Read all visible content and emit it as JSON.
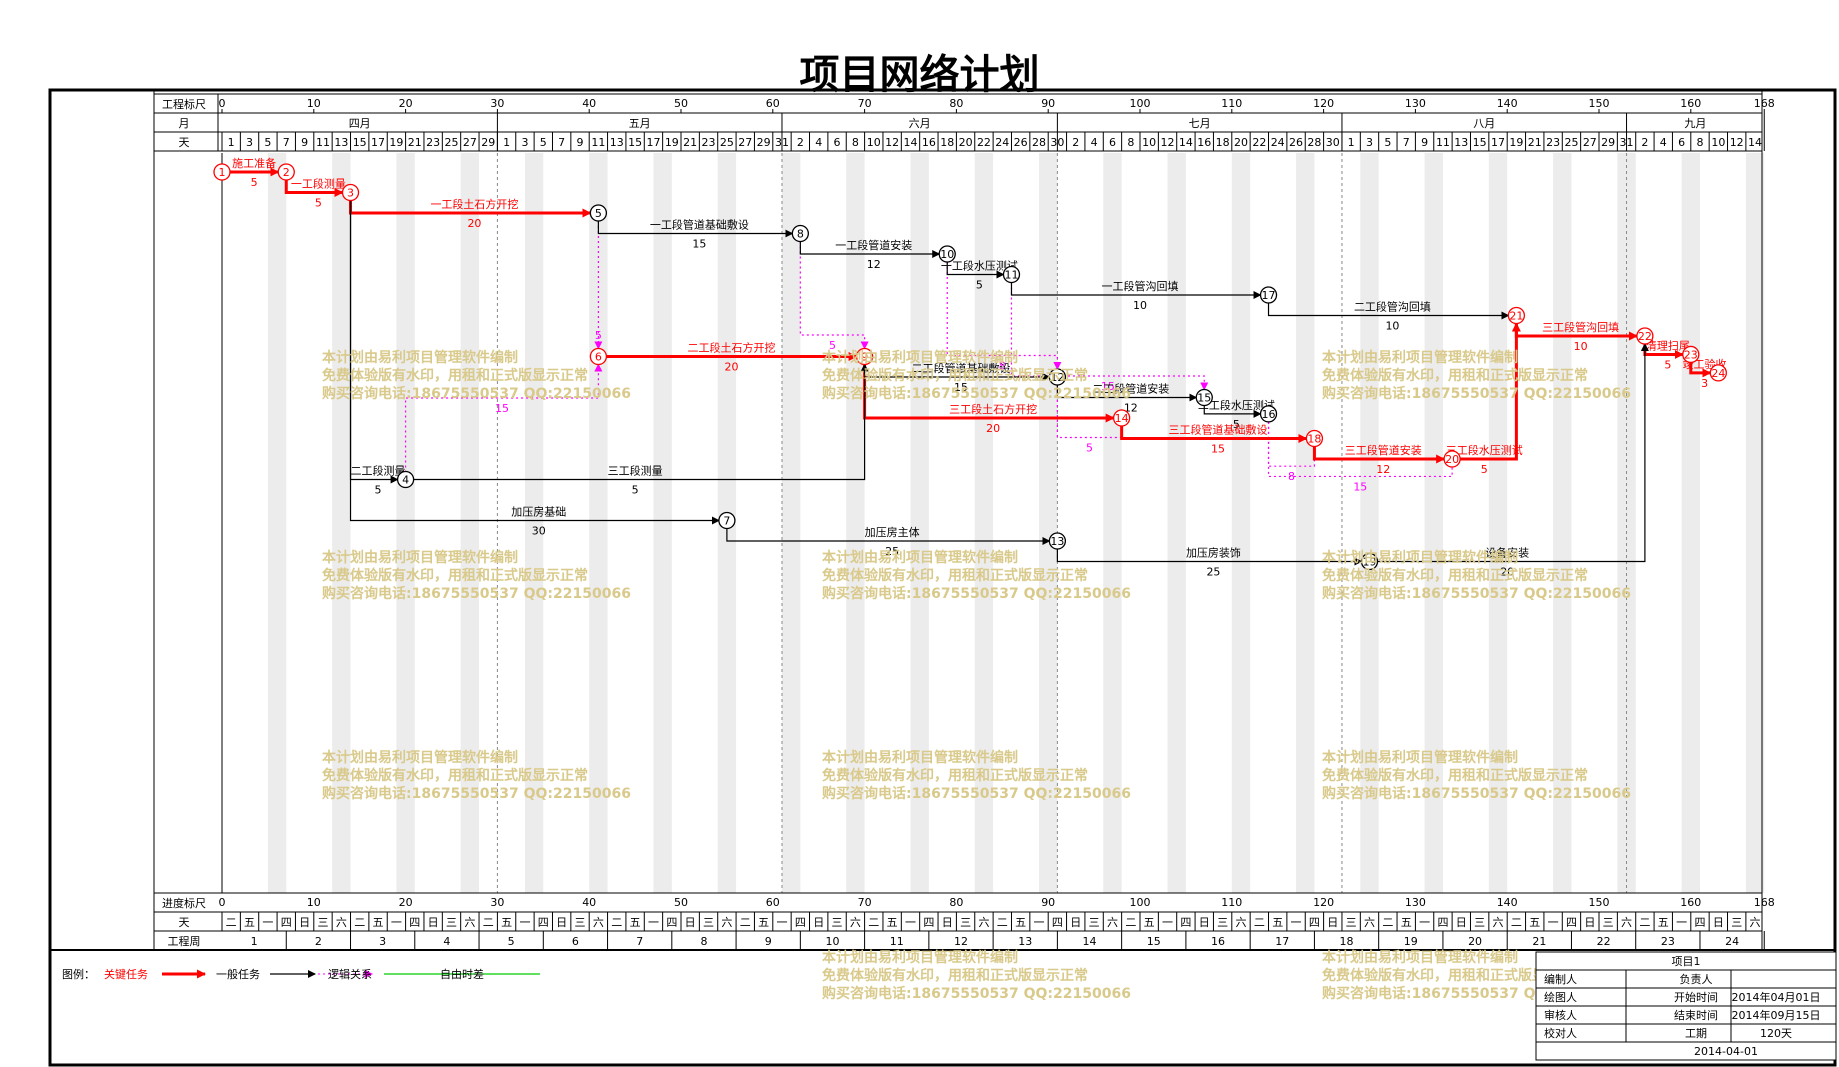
{
  "title": "项目网络计划",
  "scale": {
    "top_label": "工程标尺",
    "bottom_label": "进度标尺",
    "ticks": [
      "0",
      "10",
      "20",
      "30",
      "40",
      "50",
      "60",
      "70",
      "80",
      "90",
      "100",
      "110",
      "120",
      "130",
      "140",
      "150",
      "160",
      "168"
    ],
    "tick_days": [
      0,
      10,
      20,
      30,
      40,
      50,
      60,
      70,
      80,
      90,
      100,
      110,
      120,
      130,
      140,
      150,
      160,
      168
    ],
    "total_days": 168
  },
  "month_row": {
    "label": "月",
    "months": [
      {
        "name": "四月",
        "days": 30
      },
      {
        "name": "五月",
        "days": 31
      },
      {
        "name": "六月",
        "days": 30
      },
      {
        "name": "七月",
        "days": 31
      },
      {
        "name": "八月",
        "days": 31
      },
      {
        "name": "九月",
        "days": 15
      }
    ]
  },
  "day_row": {
    "label": "天",
    "days": [
      "1",
      "3",
      "5",
      "7",
      "9",
      "11",
      "13",
      "15",
      "17",
      "19",
      "21",
      "23",
      "25",
      "27",
      "29",
      "1",
      "3",
      "5",
      "7",
      "9",
      "11",
      "13",
      "15",
      "17",
      "19",
      "21",
      "23",
      "25",
      "27",
      "29",
      "31",
      "2",
      "4",
      "6",
      "8",
      "10",
      "12",
      "14",
      "16",
      "18",
      "20",
      "22",
      "24",
      "26",
      "28",
      "30",
      "2",
      "4",
      "6",
      "8",
      "10",
      "12",
      "14",
      "16",
      "18",
      "20",
      "22",
      "24",
      "26",
      "28",
      "30",
      "1",
      "3",
      "5",
      "7",
      "9",
      "11",
      "13",
      "15",
      "17",
      "19",
      "21",
      "23",
      "25",
      "27",
      "29",
      "31",
      "2",
      "4",
      "6",
      "8",
      "10",
      "12",
      "14"
    ]
  },
  "weekday_row": {
    "label": "天",
    "days": [
      "二",
      "五",
      "一",
      "四",
      "日",
      "三",
      "六",
      "二",
      "五",
      "一",
      "四",
      "日",
      "三",
      "六",
      "二",
      "五",
      "一",
      "四",
      "日",
      "三",
      "六",
      "二",
      "五",
      "一",
      "四",
      "日",
      "三",
      "六",
      "二",
      "五",
      "一",
      "四",
      "日",
      "三",
      "六",
      "二",
      "五",
      "一",
      "四",
      "日",
      "三",
      "六",
      "二",
      "五",
      "一",
      "四",
      "日",
      "三",
      "六",
      "二",
      "五",
      "一",
      "四",
      "日",
      "三",
      "六",
      "二",
      "五",
      "一",
      "四",
      "日",
      "三",
      "六",
      "二",
      "五",
      "一",
      "四",
      "日",
      "三",
      "六",
      "二",
      "五",
      "一",
      "四",
      "日",
      "三",
      "六",
      "二",
      "五",
      "一",
      "四",
      "日",
      "三",
      "六"
    ]
  },
  "week_row": {
    "label": "工程周",
    "weeks": [
      "1",
      "2",
      "3",
      "4",
      "5",
      "6",
      "7",
      "8",
      "9",
      "10",
      "11",
      "12",
      "13",
      "14",
      "15",
      "16",
      "17",
      "18",
      "19",
      "20",
      "21",
      "22",
      "23",
      "24"
    ]
  },
  "nodes": [
    {
      "id": "1",
      "day": 0,
      "row": 0,
      "critical": true
    },
    {
      "id": "2",
      "day": 7,
      "row": 0,
      "critical": true
    },
    {
      "id": "3",
      "day": 14,
      "row": 1,
      "critical": true
    },
    {
      "id": "4",
      "day": 20,
      "row": 15
    },
    {
      "id": "5",
      "day": 41,
      "row": 2
    },
    {
      "id": "6",
      "day": 41,
      "row": 9,
      "critical": true
    },
    {
      "id": "7",
      "day": 55,
      "row": 17
    },
    {
      "id": "8",
      "day": 63,
      "row": 3
    },
    {
      "id": "9",
      "day": 70,
      "row": 9,
      "critical": true
    },
    {
      "id": "10",
      "day": 79,
      "row": 4
    },
    {
      "id": "11",
      "day": 86,
      "row": 5
    },
    {
      "id": "12",
      "day": 91,
      "row": 10
    },
    {
      "id": "13",
      "day": 91,
      "row": 18
    },
    {
      "id": "14",
      "day": 98,
      "row": 12,
      "critical": true
    },
    {
      "id": "15",
      "day": 107,
      "row": 11
    },
    {
      "id": "16",
      "day": 114,
      "row": 11.8
    },
    {
      "id": "17",
      "day": 114,
      "row": 6
    },
    {
      "id": "18",
      "day": 119,
      "row": 13,
      "critical": true
    },
    {
      "id": "19",
      "day": 125,
      "row": 19
    },
    {
      "id": "20",
      "day": 134,
      "row": 14,
      "critical": true
    },
    {
      "id": "21",
      "day": 141,
      "row": 7,
      "critical": true
    },
    {
      "id": "22",
      "day": 155,
      "row": 8,
      "critical": true
    },
    {
      "id": "23",
      "day": 160,
      "row": 8.9,
      "critical": true
    },
    {
      "id": "24",
      "day": 163,
      "row": 9.8,
      "critical": true
    }
  ],
  "tasks": [
    {
      "from": "1",
      "to": "2",
      "name": "施工准备",
      "duration": "5",
      "critical": true
    },
    {
      "from": "2",
      "to": "3",
      "name": "一工段测量",
      "duration": "5",
      "critical": true
    },
    {
      "from": "3",
      "to": "5",
      "name": "一工段土石方开挖",
      "duration": "20",
      "critical": true
    },
    {
      "from": "5",
      "to": "8",
      "name": "一工段管道基础敷设",
      "duration": "15"
    },
    {
      "from": "8",
      "to": "10",
      "name": "一工段管道安装",
      "duration": "12"
    },
    {
      "from": "10",
      "to": "11",
      "name": "一工段水压测试",
      "duration": "5"
    },
    {
      "from": "11",
      "to": "17",
      "name": "一工段管沟回填",
      "duration": "10"
    },
    {
      "from": "17",
      "to": "21",
      "name": "二工段管沟回填",
      "duration": "10"
    },
    {
      "from": "21",
      "to": "22",
      "name": "三工段管沟回填",
      "duration": "10",
      "critical": true
    },
    {
      "from": "22",
      "to": "23",
      "name": "清理扫尾",
      "duration": "5",
      "critical": true
    },
    {
      "from": "23",
      "to": "24",
      "name": "竣工验收",
      "duration": "3",
      "critical": true
    },
    {
      "from": "6",
      "to": "9",
      "name": "二工段土石方开挖",
      "duration": "20",
      "critical": true
    },
    {
      "from": "9",
      "to": "12",
      "name": "二工段管道基础敷设",
      "duration": "15"
    },
    {
      "from": "12",
      "to": "15",
      "name": "二工段管道安装",
      "duration": "12"
    },
    {
      "from": "15",
      "to": "16",
      "name": "二工段水压测试",
      "duration": "5"
    },
    {
      "from": "9",
      "to": "14",
      "name": "三工段土石方开挖",
      "duration": "20",
      "critical": true
    },
    {
      "from": "14",
      "to": "18",
      "name": "三工段管道基础敷设",
      "duration": "15",
      "critical": true
    },
    {
      "from": "18",
      "to": "20",
      "name": "三工段管道安装",
      "duration": "12",
      "critical": true
    },
    {
      "from": "20",
      "to": "21",
      "name": "三工段水压测试",
      "duration": "5",
      "critical": true
    },
    {
      "from": "3",
      "to": "4",
      "name": "二工段测量",
      "duration": "5"
    },
    {
      "from": "4",
      "to": "9",
      "name": "三工段测量",
      "duration": "5"
    },
    {
      "from": "3",
      "to": "7",
      "name": "加压房基础",
      "duration": "30"
    },
    {
      "from": "7",
      "to": "13",
      "name": "加压房主体",
      "duration": "25"
    },
    {
      "from": "13",
      "to": "19",
      "name": "加压房装饰",
      "duration": "25"
    },
    {
      "from": "19",
      "to": "22",
      "name": "设备安装",
      "duration": "20"
    }
  ],
  "logic_links": [
    {
      "from": "5",
      "to": "6",
      "label": "5"
    },
    {
      "from": "8",
      "to": "9",
      "label": "5"
    },
    {
      "from": "10",
      "to": "12",
      "label": "8"
    },
    {
      "from": "11",
      "to": "15",
      "label": "15"
    },
    {
      "from": "12",
      "to": "14",
      "label": "5"
    },
    {
      "from": "16",
      "to": "18",
      "label": "8"
    },
    {
      "from": "16",
      "to": "20",
      "label": "15"
    },
    {
      "from": "4",
      "to": "6",
      "label": "15"
    }
  ],
  "watermark": {
    "lines": [
      "本计划由易利项目管理软件编制",
      "免费体验版有水印，用租和正式版显示正常",
      "购买咨询电话:18675550537 QQ:22150066"
    ]
  },
  "legend": {
    "prefix": "图例：",
    "critical": "关键任务",
    "normal": "一般任务",
    "logic": "逻辑关系",
    "float": "自由时差"
  },
  "info_table": {
    "project": "项目1",
    "rows": [
      {
        "label": "编制人",
        "value_label": "负责人",
        "value": ""
      },
      {
        "label": "绘图人",
        "value_label": "开始时间",
        "value": "2014年04月01日"
      },
      {
        "label": "审核人",
        "value_label": "结束时间",
        "value": "2014年09月15日"
      },
      {
        "label": "校对人",
        "value_label": "工期",
        "value": "120天"
      }
    ],
    "date": "2014-04-01"
  },
  "colors": {
    "critical": "#ff0000",
    "normal": "#000000",
    "logic": "#ff00ff",
    "float": "#00cc00",
    "watermark": "#d9c98a",
    "weekend_band": "#dcdcdc"
  }
}
